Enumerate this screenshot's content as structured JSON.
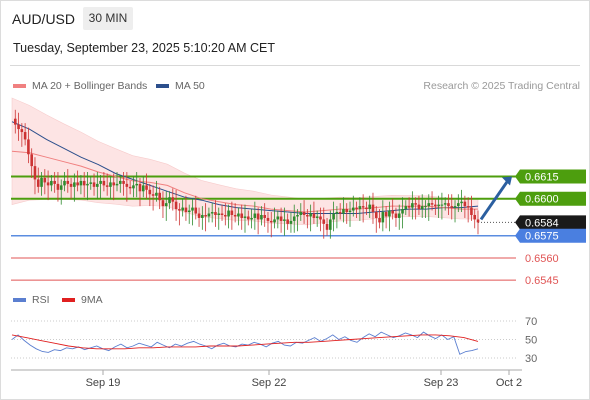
{
  "header": {
    "symbol": "AUD/USD",
    "timeframe": "30 MIN",
    "timestamp": "Tuesday, September 23, 2025 5:10:20 AM CET"
  },
  "legend": {
    "ma20": "MA 20 + Bollinger Bands",
    "ma50": "MA 50",
    "copyright": "Research © 2025 Trading Central"
  },
  "rsi_legend": {
    "rsi": "RSI",
    "ma9": "9MA"
  },
  "colors": {
    "up": "#2e8b2e",
    "down": "#cc3333",
    "resistance": "#4d9e0e",
    "support": "#5b8de0",
    "target": "#e05555",
    "current_price": "#1a1a1a",
    "arrow": "#2b5fa0",
    "ma20": "#f08080",
    "ma50": "#2c4f8c",
    "bollinger_fill": "#fde4e4",
    "rsi": "#5b7fd0",
    "rsi_ma": "#e02020"
  },
  "chart_data": [
    {
      "type": "candlestick",
      "title": "AUD/USD",
      "timeframe": "30 MIN",
      "x_ticks": [
        "Sep 19",
        "Sep 22",
        "Sep 23",
        "Oct 2"
      ],
      "ylim": [
        0.6535,
        0.667
      ],
      "current_price": "0.6584",
      "levels": [
        {
          "label": "0.6615",
          "value": 0.6615,
          "kind": "resistance"
        },
        {
          "label": "0.6600",
          "value": 0.66,
          "kind": "resistance"
        },
        {
          "label": "0.6584",
          "value": 0.6584,
          "kind": "current"
        },
        {
          "label": "0.6575",
          "value": 0.6575,
          "kind": "support"
        },
        {
          "label": "0.6560",
          "value": 0.656,
          "kind": "target"
        },
        {
          "label": "0.6545",
          "value": 0.6545,
          "kind": "target"
        }
      ],
      "close": [
        0.6654,
        0.665,
        0.6647,
        0.6645,
        0.664,
        0.663,
        0.6622,
        0.6613,
        0.6608,
        0.6614,
        0.6611,
        0.6609,
        0.6612,
        0.661,
        0.6606,
        0.6609,
        0.6612,
        0.661,
        0.6608,
        0.6611,
        0.6609,
        0.6612,
        0.6609,
        0.661,
        0.6611,
        0.6608,
        0.661,
        0.6612,
        0.6609,
        0.6608,
        0.6611,
        0.6609,
        0.661,
        0.6612,
        0.661,
        0.6608,
        0.6607,
        0.6609,
        0.661,
        0.6605,
        0.6609,
        0.6606,
        0.6603,
        0.6602,
        0.6604,
        0.6599,
        0.6595,
        0.6597,
        0.6601,
        0.6598,
        0.6593,
        0.6592,
        0.6594,
        0.6591,
        0.6592,
        0.6594,
        0.659,
        0.6587,
        0.6589,
        0.6588,
        0.659,
        0.6591,
        0.6589,
        0.659,
        0.6589,
        0.6588,
        0.6592,
        0.6589,
        0.6588,
        0.659,
        0.6587,
        0.6588,
        0.6586,
        0.6587,
        0.659,
        0.6586,
        0.6589,
        0.6587,
        0.6585,
        0.6584,
        0.6586,
        0.6588,
        0.6585,
        0.6586,
        0.6583,
        0.6585,
        0.6588,
        0.6589,
        0.6591,
        0.6589,
        0.6588,
        0.659,
        0.6587,
        0.6588,
        0.6586,
        0.6583,
        0.6579,
        0.6586,
        0.659,
        0.6591,
        0.659,
        0.6593,
        0.6591,
        0.6592,
        0.6594,
        0.6593,
        0.6595,
        0.6594,
        0.6593,
        0.6596,
        0.6591,
        0.6587,
        0.6584,
        0.6591,
        0.6588,
        0.6592,
        0.659,
        0.6587,
        0.659,
        0.6593,
        0.6595,
        0.6594,
        0.6597,
        0.6596,
        0.6593,
        0.6595,
        0.6595,
        0.6597,
        0.6596,
        0.6595,
        0.6596,
        0.6596,
        0.6597,
        0.6595,
        0.6594,
        0.6595,
        0.6597,
        0.6598,
        0.6595,
        0.6594,
        0.6589,
        0.6586,
        0.6584
      ],
      "ma20": [
        0.6632,
        0.6631,
        0.6628,
        0.6625,
        0.6622,
        0.6618,
        0.6615,
        0.6612,
        0.6611,
        0.6609,
        0.6604,
        0.66,
        0.6598,
        0.6596,
        0.6595,
        0.6593,
        0.6592,
        0.6591,
        0.6592,
        0.6593,
        0.6593,
        0.6594,
        0.6595,
        0.6595,
        0.6595,
        0.6594,
        0.6593,
        0.6593
      ],
      "ma50": [
        0.6652,
        0.6647,
        0.664,
        0.6634,
        0.6628,
        0.6623,
        0.6617,
        0.6613,
        0.6609,
        0.6605,
        0.6601,
        0.6599,
        0.6596,
        0.6594,
        0.6593,
        0.6592,
        0.6591,
        0.659,
        0.659,
        0.659,
        0.659,
        0.6591,
        0.6592,
        0.6593,
        0.6593,
        0.6594,
        0.6594,
        0.6595
      ],
      "projection": {
        "from": 0.6586,
        "to": 0.6615
      }
    },
    {
      "type": "line",
      "title": "RSI",
      "series": [
        {
          "name": "RSI",
          "values": [
            50,
            55,
            49,
            44,
            40,
            37,
            36,
            39,
            38,
            41,
            40,
            42,
            39,
            41,
            43,
            40,
            38,
            42,
            45,
            41,
            43,
            46,
            44,
            42,
            47,
            44,
            41,
            45,
            43,
            46,
            48,
            45,
            43,
            40,
            44,
            46,
            43,
            42,
            45,
            44,
            47,
            45,
            42,
            46,
            48,
            44,
            43,
            47,
            46,
            49,
            52,
            48,
            51,
            55,
            50,
            53,
            49,
            47,
            52,
            56,
            53,
            58,
            55,
            52,
            54,
            57,
            55,
            52,
            58,
            54,
            51,
            55,
            50,
            53,
            34,
            37,
            38,
            40
          ]
        },
        {
          "name": "9MA",
          "values": [
            55,
            52,
            49,
            46,
            43,
            41,
            40,
            40,
            40,
            41,
            41,
            42,
            42,
            42,
            43,
            43,
            43,
            44,
            45,
            46,
            47,
            47,
            48,
            49,
            50,
            51,
            52,
            53,
            54,
            55,
            55,
            54,
            52,
            48
          ]
        }
      ],
      "y_ticks": [
        "70",
        "50",
        "30"
      ],
      "ylim": [
        25,
        75
      ]
    }
  ]
}
